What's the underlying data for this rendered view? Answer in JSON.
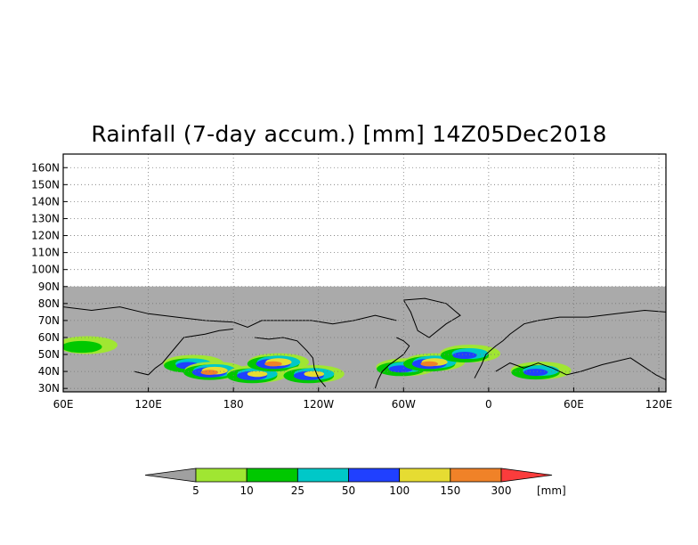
{
  "title": "Rainfall (7-day accum.) [mm] 14Z05Dec2018",
  "map": {
    "projection": "cylindrical",
    "lat_labels": [
      "160N",
      "150N",
      "140N",
      "130N",
      "120N",
      "110N",
      "100N",
      "90N",
      "80N",
      "70N",
      "60N",
      "50N",
      "40N",
      "30N"
    ],
    "lat_values": [
      160,
      150,
      140,
      130,
      120,
      110,
      100,
      90,
      80,
      70,
      60,
      50,
      40,
      30
    ],
    "lon_labels": [
      "60E",
      "120E",
      "180",
      "120W",
      "60W",
      "0",
      "60E",
      "120E"
    ],
    "lon_values": [
      60,
      120,
      180,
      240,
      300,
      360,
      420,
      480
    ],
    "lat_range": [
      28,
      168
    ],
    "lon_range": [
      60,
      485
    ],
    "data_lat_max": 90,
    "grid": "dotted",
    "no_data_color": "#aaaaaa",
    "coastline_color": "#000000"
  },
  "colorbar": {
    "levels": [
      "5",
      "10",
      "25",
      "50",
      "100",
      "150",
      "300"
    ],
    "unit": "[mm]",
    "colors": [
      "#a0a0a0",
      "#a0e632",
      "#00c800",
      "#00c8c8",
      "#2040ff",
      "#e6dc32",
      "#f08228",
      "#fa3c3c"
    ]
  },
  "rain_bands": [
    {
      "lon": 150,
      "lat": 44,
      "level": 4
    },
    {
      "lon": 165,
      "lat": 40,
      "level": 6
    },
    {
      "lon": 195,
      "lat": 38,
      "level": 5
    },
    {
      "lon": 210,
      "lat": 45,
      "level": 6
    },
    {
      "lon": 235,
      "lat": 38,
      "level": 5
    },
    {
      "lon": 300,
      "lat": 42,
      "level": 4
    },
    {
      "lon": 320,
      "lat": 45,
      "level": 6
    },
    {
      "lon": 345,
      "lat": 50,
      "level": 4
    },
    {
      "lon": 395,
      "lat": 40,
      "level": 4
    },
    {
      "lon": 75,
      "lat": 55,
      "level": 2
    }
  ]
}
